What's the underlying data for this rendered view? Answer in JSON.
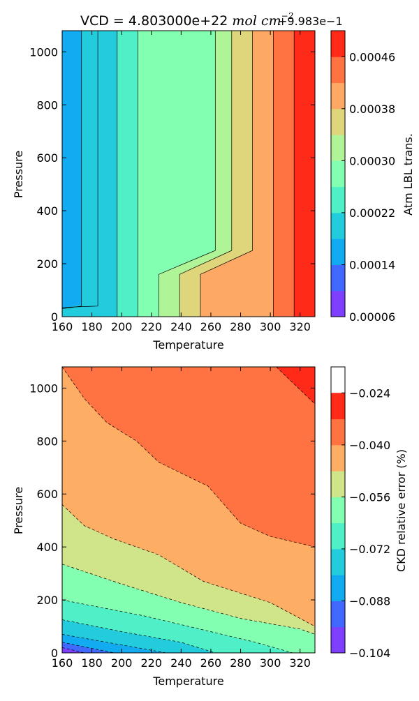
{
  "chart_data": [
    {
      "type": "contour",
      "title": "VCD = 4.803000e+22 ",
      "title_math": "mol cm",
      "title_sup": "−2",
      "offset_label": "+9.983e−1",
      "xlabel": "Temperature",
      "ylabel": "Pressure",
      "xlim": [
        160,
        330
      ],
      "ylim": [
        0,
        1080
      ],
      "xticks": [
        "160",
        "180",
        "200",
        "220",
        "240",
        "260",
        "280",
        "300",
        "320"
      ],
      "yticks": [
        "0",
        "200",
        "400",
        "600",
        "800",
        "1000"
      ],
      "xtick_values": [
        160,
        180,
        200,
        220,
        240,
        260,
        280,
        300,
        320
      ],
      "ytick_values": [
        0,
        200,
        400,
        600,
        800,
        1000
      ],
      "colorbar": {
        "label": "Atm LBL trans.",
        "levels": [
          6e-05,
          0.0001,
          0.00014,
          0.00018,
          0.00022,
          0.00026,
          0.0003,
          0.00034,
          0.00038,
          0.00042,
          0.00046,
          0.0005
        ],
        "ticks": [
          "0.00006",
          "0.00014",
          "0.00022",
          "0.00030",
          "0.00038",
          "0.00046"
        ],
        "tick_values": [
          6e-05,
          0.00014,
          0.00022,
          0.0003,
          0.00038,
          0.00046
        ],
        "colors": [
          "#7f3fff",
          "#4169ff",
          "#12aaf0",
          "#23ccdd",
          "#4ff0c8",
          "#82ffb0",
          "#b0f498",
          "#dfd67c",
          "#fda864",
          "#ff7342",
          "#ff2a17"
        ]
      },
      "filled_regions": [
        {
          "color_index": 1,
          "polygon": [
            [
              160,
              0
            ],
            [
              160,
              1080
            ],
            [
              173,
              1080
            ],
            [
              173,
              45
            ],
            [
              160,
              40
            ]
          ]
        },
        {
          "color_index": 2,
          "polygon": [
            [
              160,
              30
            ],
            [
              173,
              40
            ],
            [
              173,
              1080
            ],
            [
              160,
              1080
            ],
            [
              160,
              1080
            ]
          ]
        },
        {
          "color_index": 3,
          "polygon": [
            [
              160,
              0
            ],
            [
              160,
              30
            ],
            [
              173,
              45
            ],
            [
              173,
              1080
            ],
            [
              197,
              1080
            ],
            [
              197,
              0
            ]
          ]
        },
        {
          "color_index": 3,
          "polygon": [
            [
              160,
              30
            ],
            [
              184,
              40
            ],
            [
              184,
              0
            ]
          ]
        },
        {
          "color_index": 4,
          "polygon": [
            [
              197,
              0
            ],
            [
              197,
              1080
            ],
            [
              211,
              1080
            ],
            [
              211,
              0
            ]
          ]
        },
        {
          "color_index": 5,
          "polygon": [
            [
              211,
              0
            ],
            [
              211,
              1080
            ],
            [
              263,
              1080
            ],
            [
              263,
              250
            ],
            [
              225,
              160
            ],
            [
              225,
              0
            ]
          ]
        },
        {
          "color_index": 6,
          "polygon": [
            [
              225,
              0
            ],
            [
              225,
              160
            ],
            [
              263,
              250
            ],
            [
              263,
              1080
            ],
            [
              274,
              1080
            ],
            [
              274,
              250
            ],
            [
              239,
              160
            ],
            [
              239,
              0
            ]
          ]
        },
        {
          "color_index": 7,
          "polygon": [
            [
              239,
              0
            ],
            [
              239,
              160
            ],
            [
              274,
              250
            ],
            [
              274,
              1080
            ],
            [
              288,
              1080
            ],
            [
              288,
              250
            ],
            [
              253,
              160
            ],
            [
              253,
              0
            ]
          ]
        },
        {
          "color_index": 8,
          "polygon": [
            [
              253,
              0
            ],
            [
              253,
              160
            ],
            [
              288,
              250
            ],
            [
              288,
              1080
            ],
            [
              302,
              1080
            ],
            [
              302,
              0
            ]
          ]
        },
        {
          "color_index": 9,
          "polygon": [
            [
              302,
              0
            ],
            [
              302,
              1080
            ],
            [
              316,
              1080
            ],
            [
              316,
              0
            ]
          ]
        },
        {
          "color_index": 10,
          "polygon": [
            [
              316,
              0
            ],
            [
              316,
              1080
            ],
            [
              330,
              1080
            ],
            [
              330,
              0
            ]
          ]
        }
      ],
      "contour_lines": [
        [
          [
            160,
            30
          ],
          [
            173,
            40
          ],
          [
            173,
            1080
          ]
        ],
        [
          [
            160,
            35
          ],
          [
            184,
            40
          ],
          [
            184,
            1080
          ]
        ],
        [
          [
            197,
            0
          ],
          [
            197,
            1080
          ]
        ],
        [
          [
            211,
            0
          ],
          [
            211,
            1080
          ]
        ],
        [
          [
            225,
            0
          ],
          [
            225,
            160
          ],
          [
            263,
            250
          ],
          [
            263,
            1080
          ]
        ],
        [
          [
            239,
            0
          ],
          [
            239,
            160
          ],
          [
            274,
            250
          ],
          [
            274,
            1080
          ]
        ],
        [
          [
            253,
            0
          ],
          [
            253,
            160
          ],
          [
            288,
            250
          ],
          [
            288,
            1080
          ]
        ],
        [
          [
            302,
            0
          ],
          [
            302,
            1080
          ]
        ],
        [
          [
            316,
            0
          ],
          [
            316,
            1080
          ]
        ]
      ],
      "line_style": "solid"
    },
    {
      "type": "contour",
      "title": "",
      "xlabel": "Temperature",
      "ylabel": "Pressure",
      "xlim": [
        160,
        330
      ],
      "ylim": [
        0,
        1080
      ],
      "xticks": [
        "160",
        "180",
        "200",
        "220",
        "240",
        "260",
        "280",
        "300",
        "320"
      ],
      "yticks": [
        "0",
        "200",
        "400",
        "600",
        "800",
        "1000"
      ],
      "xtick_values": [
        160,
        180,
        200,
        220,
        240,
        260,
        280,
        300,
        320
      ],
      "ytick_values": [
        0,
        200,
        400,
        600,
        800,
        1000
      ],
      "colorbar": {
        "label": "CKD relative error (%)",
        "levels": [
          -0.104,
          -0.096,
          -0.088,
          -0.08,
          -0.072,
          -0.064,
          -0.056,
          -0.048,
          -0.04,
          -0.032,
          -0.024,
          -0.016
        ],
        "ticks": [
          "−0.104",
          "−0.088",
          "−0.072",
          "−0.056",
          "−0.040",
          "−0.024"
        ],
        "tick_values": [
          -0.104,
          -0.088,
          -0.072,
          -0.056,
          -0.04,
          -0.024
        ],
        "colors": [
          "#7f3fff",
          "#4169ff",
          "#12aaf0",
          "#23ccdd",
          "#4ff0c8",
          "#82ffb0",
          "#d0e48a",
          "#fdae64",
          "#ff7342",
          "#ff2a17"
        ]
      },
      "filled_regions": [
        {
          "color_index": 0,
          "polygon": [
            [
              160,
              0
            ],
            [
              160,
              20
            ],
            [
              175,
              0
            ]
          ]
        },
        {
          "color_index": 1,
          "polygon": [
            [
              160,
              20
            ],
            [
              160,
              40
            ],
            [
              195,
              0
            ],
            [
              175,
              0
            ]
          ]
        },
        {
          "color_index": 2,
          "polygon": [
            [
              160,
              40
            ],
            [
              160,
              70
            ],
            [
              230,
              0
            ],
            [
              195,
              0
            ]
          ]
        },
        {
          "color_index": 3,
          "polygon": [
            [
              160,
              70
            ],
            [
              160,
              125
            ],
            [
              200,
              80
            ],
            [
              240,
              40
            ],
            [
              263,
              0
            ],
            [
              230,
              0
            ]
          ]
        },
        {
          "color_index": 4,
          "polygon": [
            [
              160,
              125
            ],
            [
              160,
              200
            ],
            [
              215,
              140
            ],
            [
              260,
              80
            ],
            [
              290,
              40
            ],
            [
              315,
              0
            ],
            [
              263,
              0
            ],
            [
              240,
              40
            ],
            [
              200,
              80
            ]
          ]
        },
        {
          "color_index": 5,
          "polygon": [
            [
              160,
              200
            ],
            [
              160,
              335
            ],
            [
              200,
              260
            ],
            [
              240,
              190
            ],
            [
              280,
              130
            ],
            [
              320,
              90
            ],
            [
              330,
              70
            ],
            [
              330,
              0
            ],
            [
              315,
              0
            ],
            [
              290,
              40
            ],
            [
              260,
              80
            ],
            [
              215,
              140
            ]
          ]
        },
        {
          "color_index": 6,
          "polygon": [
            [
              160,
              335
            ],
            [
              160,
              560
            ],
            [
              175,
              480
            ],
            [
              195,
              430
            ],
            [
              225,
              370
            ],
            [
              255,
              270
            ],
            [
              300,
              190
            ],
            [
              330,
              100
            ],
            [
              330,
              70
            ],
            [
              320,
              90
            ],
            [
              280,
              130
            ],
            [
              240,
              190
            ],
            [
              200,
              260
            ]
          ]
        },
        {
          "color_index": 7,
          "polygon": [
            [
              160,
              560
            ],
            [
              160,
              1080
            ],
            [
              175,
              960
            ],
            [
              190,
              870
            ],
            [
              210,
              800
            ],
            [
              225,
              720
            ],
            [
              258,
              630
            ],
            [
              280,
              490
            ],
            [
              300,
              440
            ],
            [
              330,
              400
            ],
            [
              330,
              100
            ],
            [
              300,
              190
            ],
            [
              255,
              270
            ],
            [
              225,
              370
            ],
            [
              195,
              430
            ],
            [
              175,
              480
            ]
          ]
        },
        {
          "color_index": 8,
          "polygon": [
            [
              160,
              1080
            ],
            [
              160,
              1080
            ],
            [
              304,
              1080
            ],
            [
              330,
              940
            ],
            [
              330,
              400
            ],
            [
              300,
              440
            ],
            [
              280,
              490
            ],
            [
              258,
              630
            ],
            [
              225,
              720
            ],
            [
              210,
              800
            ],
            [
              190,
              870
            ],
            [
              175,
              960
            ]
          ]
        },
        {
          "color_index": 9,
          "polygon": [
            [
              304,
              1080
            ],
            [
              330,
              1080
            ],
            [
              330,
              940
            ]
          ]
        }
      ],
      "contour_lines": [
        [
          [
            160,
            20
          ],
          [
            175,
            0
          ]
        ],
        [
          [
            160,
            40
          ],
          [
            195,
            0
          ]
        ],
        [
          [
            160,
            70
          ],
          [
            230,
            0
          ]
        ],
        [
          [
            160,
            125
          ],
          [
            200,
            80
          ],
          [
            240,
            40
          ],
          [
            263,
            0
          ]
        ],
        [
          [
            160,
            200
          ],
          [
            215,
            140
          ],
          [
            260,
            80
          ],
          [
            290,
            40
          ],
          [
            315,
            0
          ]
        ],
        [
          [
            160,
            335
          ],
          [
            200,
            260
          ],
          [
            240,
            190
          ],
          [
            280,
            130
          ],
          [
            320,
            90
          ],
          [
            330,
            70
          ]
        ],
        [
          [
            160,
            560
          ],
          [
            175,
            480
          ],
          [
            195,
            430
          ],
          [
            225,
            370
          ],
          [
            255,
            270
          ],
          [
            300,
            190
          ],
          [
            330,
            100
          ]
        ],
        [
          [
            160,
            1080
          ],
          [
            175,
            960
          ],
          [
            190,
            870
          ],
          [
            210,
            800
          ],
          [
            225,
            720
          ],
          [
            258,
            630
          ],
          [
            280,
            490
          ],
          [
            300,
            440
          ],
          [
            330,
            400
          ]
        ],
        [
          [
            304,
            1080
          ],
          [
            330,
            940
          ]
        ]
      ],
      "line_style": "dashed"
    }
  ]
}
